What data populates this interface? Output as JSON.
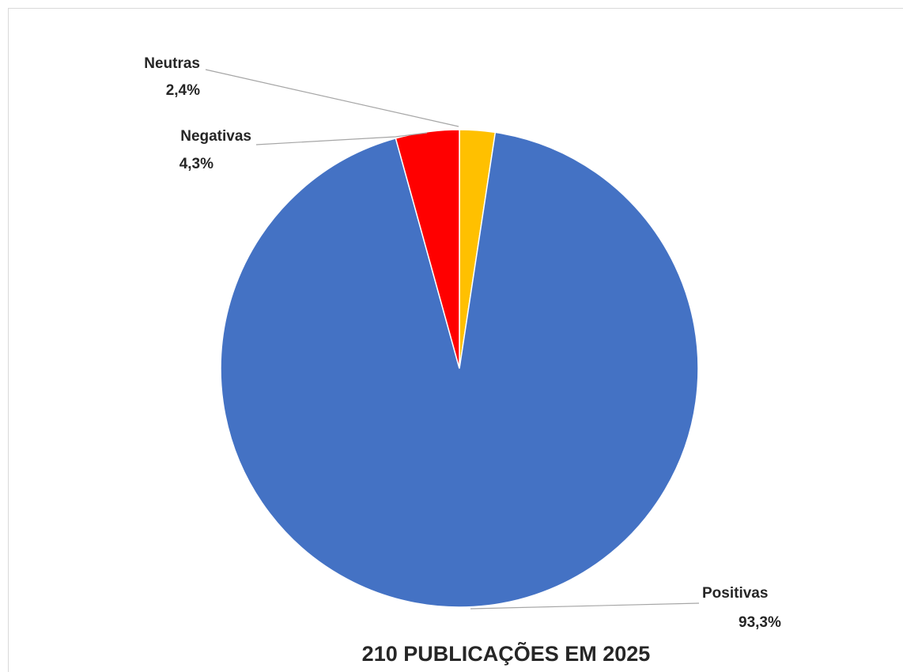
{
  "chart_data": {
    "type": "pie",
    "title": "210 PUBLICAÇÕES EM 2025",
    "slices": [
      {
        "name": "Neutras",
        "value": 2.4,
        "label": "2,4%",
        "color": "#FFC000"
      },
      {
        "name": "Positivas",
        "value": 93.3,
        "label": "93,3%",
        "color": "#4472C4"
      },
      {
        "name": "Negativas",
        "value": 4.3,
        "label": "4,3%",
        "color": "#FF0000"
      }
    ],
    "start_angle": "12 o'clock",
    "direction": "clockwise",
    "legend": "none",
    "data_labels": "outside with leader lines"
  }
}
